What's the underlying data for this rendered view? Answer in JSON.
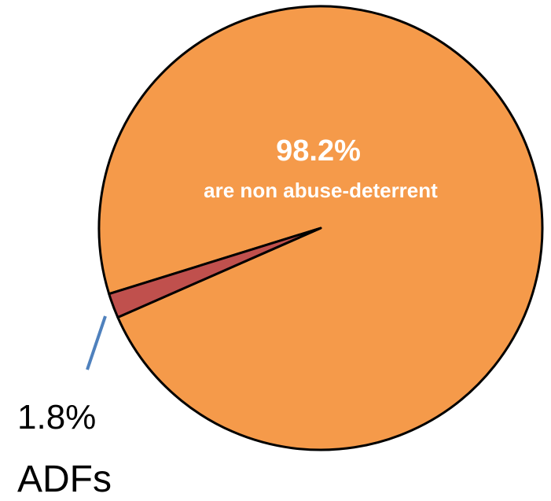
{
  "chart_data": {
    "type": "pie",
    "slices": [
      {
        "value": 98.2,
        "color": "#f59a4a"
      },
      {
        "value": 1.8,
        "color": "#c0504d"
      }
    ],
    "slice_outline": "#000000",
    "leader_color": "#4f81bd",
    "labels": {
      "major_percent": "98.2%",
      "major_text": "are non abuse-deterrent",
      "minor_percent": "1.8%",
      "minor_text": "ADFs"
    }
  }
}
